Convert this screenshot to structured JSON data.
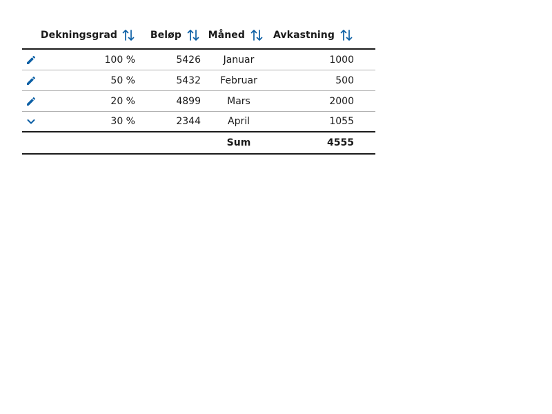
{
  "colors": {
    "accent": "#0b5fa5",
    "text": "#1a1a1a",
    "divider": "#b0b0b0"
  },
  "table": {
    "columns": [
      {
        "key": "dekningsgrad",
        "label": "Dekningsgrad",
        "sort_icon": "sort-arrows-icon"
      },
      {
        "key": "belop",
        "label": "Beløp",
        "sort_icon": "sort-arrows-icon"
      },
      {
        "key": "maned",
        "label": "Måned",
        "sort_icon": "sort-arrows-icon"
      },
      {
        "key": "avkastning",
        "label": "Avkastning",
        "sort_icon": "sort-arrows-icon"
      }
    ],
    "rows": [
      {
        "action_icon": "pencil-icon",
        "dekningsgrad": "100 %",
        "belop": "5426",
        "maned": "Januar",
        "avkastning": "1000"
      },
      {
        "action_icon": "pencil-icon",
        "dekningsgrad": "50 %",
        "belop": "5432",
        "maned": "Februar",
        "avkastning": "500"
      },
      {
        "action_icon": "pencil-icon",
        "dekningsgrad": "20 %",
        "belop": "4899",
        "maned": "Mars",
        "avkastning": "2000"
      },
      {
        "action_icon": "chevron-down-icon",
        "dekningsgrad": "30 %",
        "belop": "2344",
        "maned": "April",
        "avkastning": "1055"
      }
    ],
    "footer": {
      "label": "Sum",
      "value": "4555"
    }
  }
}
